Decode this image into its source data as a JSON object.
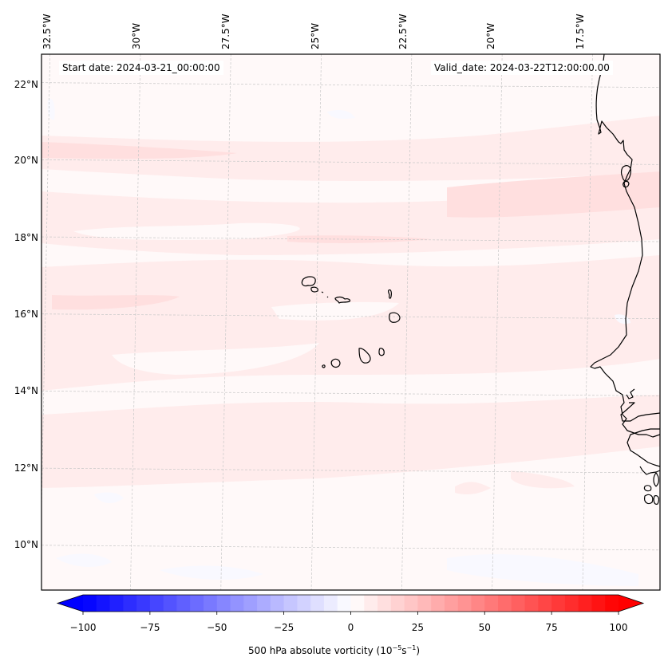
{
  "map": {
    "projection_extent": {
      "lon_min": -32.6,
      "lon_max": -15.5,
      "lat_min": 8.9,
      "lat_max": 22.8
    },
    "lon_ticks": [
      {
        "label": "32.5°W",
        "value": -32.5
      },
      {
        "label": "30°W",
        "value": -30.0
      },
      {
        "label": "27.5°W",
        "value": -27.5
      },
      {
        "label": "25°W",
        "value": -25.0
      },
      {
        "label": "22.5°W",
        "value": -22.5
      },
      {
        "label": "20°W",
        "value": -20.0
      },
      {
        "label": "17.5°W",
        "value": -17.5
      }
    ],
    "lat_ticks": [
      {
        "label": "22°N",
        "value": 22
      },
      {
        "label": "20°N",
        "value": 20
      },
      {
        "label": "18°N",
        "value": 18
      },
      {
        "label": "16°N",
        "value": 16
      },
      {
        "label": "14°N",
        "value": 14
      },
      {
        "label": "12°N",
        "value": 12
      },
      {
        "label": "10°N",
        "value": 10
      }
    ],
    "start_date": "Start date: 2024-03-21_00:00:00",
    "valid_date": "Valid_date: 2024-03-22T12:00:00.00",
    "features": [
      "Cape Verde islands",
      "West African coastline (Mauritania, Senegal, Gambia, Guinea-Bissau)"
    ]
  },
  "chart_data": {
    "type": "heatmap",
    "title": "",
    "variable": "500 hPa absolute vorticity",
    "units": "10^-5 s^-1",
    "field_summary": "Weak positive vorticity (~0–15) over most of the domain, with zonal bands of ~5–15 near 20–21°N, 18–19°N and 15–17°N; near-zero to slightly negative (~-5–0) patches south of ~12°N.",
    "approx_bands": [
      {
        "lat_range": [
          20.0,
          21.2
        ],
        "value": 10
      },
      {
        "lat_range": [
          19.0,
          20.0
        ],
        "value": 5
      },
      {
        "lat_range": [
          17.8,
          18.6
        ],
        "value": 10
      },
      {
        "lat_range": [
          15.8,
          17.4
        ],
        "value": 7
      },
      {
        "lat_range": [
          13.0,
          15.0
        ],
        "value": 5
      },
      {
        "lat_range": [
          9.0,
          12.5
        ],
        "value": 2
      }
    ],
    "colorbar": {
      "label_text": "500 hPa absolute vorticity (10",
      "label_exp1": "−5",
      "label_mid": "s",
      "label_exp2": "−1",
      "label_end": ")",
      "vmin": -100,
      "vmax": 100,
      "level_step": 5,
      "extend": "both",
      "cmap": "bwr",
      "ticks": [
        {
          "label": "−100",
          "value": -100
        },
        {
          "label": "−75",
          "value": -75
        },
        {
          "label": "−50",
          "value": -50
        },
        {
          "label": "−25",
          "value": -25
        },
        {
          "label": "0",
          "value": 0
        },
        {
          "label": "25",
          "value": 25
        },
        {
          "label": "50",
          "value": 50
        },
        {
          "label": "75",
          "value": 75
        },
        {
          "label": "100",
          "value": 100
        }
      ],
      "color_low": "#0000ff",
      "color_mid": "#ffffff",
      "color_high": "#ff0000"
    }
  }
}
